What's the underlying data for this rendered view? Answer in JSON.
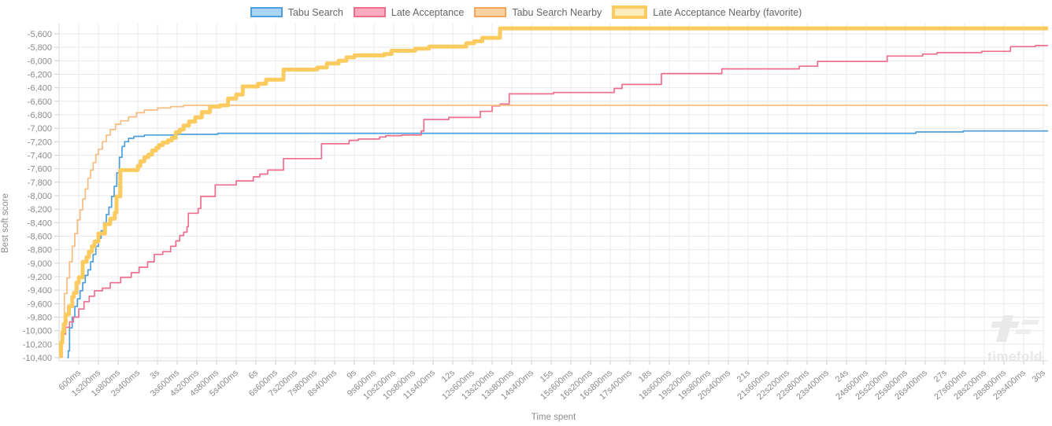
{
  "chart_data": {
    "type": "line",
    "step_mode": "after",
    "title": "",
    "xlabel": "Time spent",
    "ylabel": "Best soft score",
    "x_min_ms": 0,
    "x_max_ms": 30000,
    "x_tick_step_ms": 600,
    "x_tick_labels": [
      "600ms",
      "1s200ms",
      "1s800ms",
      "2s400ms",
      "3s",
      "3s600ms",
      "4s200ms",
      "4s800ms",
      "5s400ms",
      "6s",
      "6s600ms",
      "7s200ms",
      "7s800ms",
      "8s400ms",
      "9s",
      "9s600ms",
      "10s200ms",
      "10s800ms",
      "11s400ms",
      "12s",
      "12s600ms",
      "13s200ms",
      "13s800ms",
      "14s400ms",
      "15s",
      "15s600ms",
      "16s200ms",
      "16s800ms",
      "17s400ms",
      "18s",
      "18s600ms",
      "19s200ms",
      "19s800ms",
      "20s400ms",
      "21s",
      "21s600ms",
      "22s200ms",
      "22s800ms",
      "23s400ms",
      "24s",
      "24s600ms",
      "25s200ms",
      "25s800ms",
      "26s400ms",
      "27s",
      "27s600ms",
      "28s200ms",
      "28s800ms",
      "29s400ms",
      "30s"
    ],
    "y_max": -5600,
    "y_min": -10400,
    "y_tick_step": 200,
    "y_tick_labels": [
      "-5,600",
      "-5,800",
      "-6,000",
      "-6,200",
      "-6,400",
      "-6,600",
      "-6,800",
      "-7,000",
      "-7,200",
      "-7,400",
      "-7,600",
      "-7,800",
      "-8,000",
      "-8,200",
      "-8,400",
      "-8,600",
      "-8,800",
      "-9,000",
      "-9,200",
      "-9,400",
      "-9,600",
      "-9,800",
      "-10,000",
      "-10,200",
      "-10,400"
    ],
    "grid": true,
    "legend_position": "top",
    "watermark": "timefold",
    "series": [
      {
        "name": "Tabu Search",
        "color": "#4d9fdb",
        "legend_fill": "#abd5f5",
        "legend_border": "#4d9fdb",
        "line_width": 1.7,
        "points": [
          [
            250,
            -10400
          ],
          [
            280,
            -10300
          ],
          [
            320,
            -9960
          ],
          [
            400,
            -9800
          ],
          [
            480,
            -9640
          ],
          [
            560,
            -9530
          ],
          [
            640,
            -9410
          ],
          [
            720,
            -9290
          ],
          [
            800,
            -9180
          ],
          [
            880,
            -9100
          ],
          [
            960,
            -8980
          ],
          [
            1040,
            -8870
          ],
          [
            1120,
            -8750
          ],
          [
            1200,
            -8630
          ],
          [
            1280,
            -8520
          ],
          [
            1360,
            -8400
          ],
          [
            1440,
            -8280
          ],
          [
            1520,
            -8170
          ],
          [
            1600,
            -8010
          ],
          [
            1680,
            -7860
          ],
          [
            1760,
            -7660
          ],
          [
            1840,
            -7430
          ],
          [
            1920,
            -7270
          ],
          [
            2000,
            -7200
          ],
          [
            2120,
            -7150
          ],
          [
            2280,
            -7120
          ],
          [
            2600,
            -7100
          ],
          [
            3600,
            -7090
          ],
          [
            4840,
            -7075
          ],
          [
            26120,
            -7055
          ],
          [
            27560,
            -7040
          ],
          [
            30000,
            -7040
          ]
        ]
      },
      {
        "name": "Late Acceptance",
        "color": "#ef6e8e",
        "legend_fill": "#f8aabf",
        "legend_border": "#ef6e8e",
        "line_width": 1.7,
        "points": [
          [
            40,
            -10390
          ],
          [
            100,
            -10050
          ],
          [
            200,
            -9950
          ],
          [
            320,
            -9870
          ],
          [
            440,
            -9800
          ],
          [
            600,
            -9680
          ],
          [
            760,
            -9570
          ],
          [
            920,
            -9490
          ],
          [
            1080,
            -9410
          ],
          [
            1320,
            -9370
          ],
          [
            1560,
            -9290
          ],
          [
            1880,
            -9210
          ],
          [
            2200,
            -9140
          ],
          [
            2440,
            -9060
          ],
          [
            2700,
            -8980
          ],
          [
            2900,
            -8870
          ],
          [
            3160,
            -8830
          ],
          [
            3400,
            -8750
          ],
          [
            3560,
            -8670
          ],
          [
            3680,
            -8590
          ],
          [
            3800,
            -8540
          ],
          [
            3900,
            -8460
          ],
          [
            3940,
            -8260
          ],
          [
            4240,
            -8190
          ],
          [
            4320,
            -8010
          ],
          [
            4760,
            -7840
          ],
          [
            5400,
            -7780
          ],
          [
            5920,
            -7720
          ],
          [
            6120,
            -7680
          ],
          [
            6360,
            -7620
          ],
          [
            6840,
            -7450
          ],
          [
            8000,
            -7230
          ],
          [
            8840,
            -7180
          ],
          [
            9120,
            -7160
          ],
          [
            9770,
            -7130
          ],
          [
            9960,
            -7110
          ],
          [
            10440,
            -7100
          ],
          [
            11040,
            -7040
          ],
          [
            11120,
            -6870
          ],
          [
            11880,
            -6840
          ],
          [
            12840,
            -6750
          ],
          [
            13200,
            -6670
          ],
          [
            13440,
            -6640
          ],
          [
            13720,
            -6490
          ],
          [
            15070,
            -6470
          ],
          [
            16920,
            -6410
          ],
          [
            17160,
            -6350
          ],
          [
            18360,
            -6190
          ],
          [
            20200,
            -6120
          ],
          [
            22560,
            -6080
          ],
          [
            23120,
            -6010
          ],
          [
            25240,
            -5930
          ],
          [
            26320,
            -5900
          ],
          [
            26760,
            -5880
          ],
          [
            28120,
            -5860
          ],
          [
            29000,
            -5790
          ],
          [
            29760,
            -5775
          ],
          [
            30000,
            -5775
          ]
        ]
      },
      {
        "name": "Tabu Search Nearby",
        "color": "#f7bc80",
        "legend_fill": "#fbd3a2",
        "legend_border": "#f2a55c",
        "line_width": 1.7,
        "points": [
          [
            30,
            -10350
          ],
          [
            60,
            -10150
          ],
          [
            100,
            -9900
          ],
          [
            160,
            -9450
          ],
          [
            240,
            -9220
          ],
          [
            320,
            -8980
          ],
          [
            400,
            -8750
          ],
          [
            480,
            -8560
          ],
          [
            560,
            -8360
          ],
          [
            640,
            -8210
          ],
          [
            720,
            -8050
          ],
          [
            800,
            -7900
          ],
          [
            880,
            -7740
          ],
          [
            960,
            -7620
          ],
          [
            1040,
            -7510
          ],
          [
            1120,
            -7390
          ],
          [
            1200,
            -7310
          ],
          [
            1320,
            -7200
          ],
          [
            1440,
            -7100
          ],
          [
            1560,
            -7020
          ],
          [
            1720,
            -6940
          ],
          [
            1880,
            -6890
          ],
          [
            2120,
            -6830
          ],
          [
            2360,
            -6770
          ],
          [
            2600,
            -6730
          ],
          [
            3000,
            -6700
          ],
          [
            3400,
            -6680
          ],
          [
            3800,
            -6660
          ],
          [
            30000,
            -6660
          ]
        ]
      },
      {
        "name": "Late Acceptance Nearby (favorite)",
        "color": "#fbcb5f",
        "legend_fill": "#fcebbb",
        "legend_border": "#fbcb5f",
        "line_width": 5,
        "points": [
          [
            20,
            -10380
          ],
          [
            60,
            -10180
          ],
          [
            100,
            -10020
          ],
          [
            150,
            -9900
          ],
          [
            200,
            -9760
          ],
          [
            300,
            -9640
          ],
          [
            400,
            -9500
          ],
          [
            450,
            -9440
          ],
          [
            530,
            -9290
          ],
          [
            600,
            -9210
          ],
          [
            720,
            -8980
          ],
          [
            840,
            -8910
          ],
          [
            910,
            -8830
          ],
          [
            1000,
            -8750
          ],
          [
            1080,
            -8680
          ],
          [
            1200,
            -8560
          ],
          [
            1400,
            -8420
          ],
          [
            1560,
            -8340
          ],
          [
            1700,
            -8250
          ],
          [
            1750,
            -8010
          ],
          [
            1870,
            -7620
          ],
          [
            2400,
            -7560
          ],
          [
            2480,
            -7490
          ],
          [
            2600,
            -7430
          ],
          [
            2720,
            -7390
          ],
          [
            2840,
            -7330
          ],
          [
            2960,
            -7290
          ],
          [
            3040,
            -7250
          ],
          [
            3160,
            -7210
          ],
          [
            3320,
            -7180
          ],
          [
            3440,
            -7140
          ],
          [
            3560,
            -7060
          ],
          [
            3680,
            -7020
          ],
          [
            3800,
            -6960
          ],
          [
            3960,
            -6900
          ],
          [
            4150,
            -6840
          ],
          [
            4350,
            -6760
          ],
          [
            4600,
            -6680
          ],
          [
            4900,
            -6660
          ],
          [
            5150,
            -6560
          ],
          [
            5400,
            -6500
          ],
          [
            5600,
            -6380
          ],
          [
            6070,
            -6340
          ],
          [
            6310,
            -6280
          ],
          [
            6840,
            -6130
          ],
          [
            7870,
            -6100
          ],
          [
            8160,
            -6040
          ],
          [
            8520,
            -6000
          ],
          [
            8760,
            -5950
          ],
          [
            9000,
            -5920
          ],
          [
            9910,
            -5900
          ],
          [
            10130,
            -5850
          ],
          [
            10850,
            -5820
          ],
          [
            11280,
            -5790
          ],
          [
            12410,
            -5740
          ],
          [
            12650,
            -5710
          ],
          [
            12900,
            -5660
          ],
          [
            13440,
            -5520
          ],
          [
            30000,
            -5520
          ]
        ]
      }
    ]
  }
}
